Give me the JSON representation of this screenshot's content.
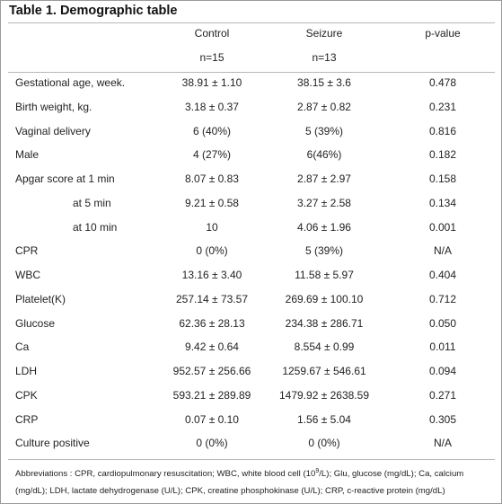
{
  "title": "Table 1. Demographic table",
  "header": {
    "control": "Control",
    "seizure": "Seizure",
    "pvalue": "p-value",
    "control_n": "n=15",
    "seizure_n": "n=13"
  },
  "rows": [
    {
      "label": "Gestational age, week.",
      "control": "38.91 ± 1.10",
      "seizure": "38.15 ± 3.6",
      "p": "0.478"
    },
    {
      "label": "Birth weight, kg.",
      "control": "3.18 ± 0.37",
      "seizure": "2.87 ± 0.82",
      "p": "0.231"
    },
    {
      "label": "Vaginal delivery",
      "control": "6 (40%)",
      "seizure": "5 (39%)",
      "p": "0.816"
    },
    {
      "label": "Male",
      "control": "4 (27%)",
      "seizure": "6(46%)",
      "p": "0.182"
    },
    {
      "label": "Apgar score at 1 min",
      "control": "8.07 ± 0.83",
      "seizure": "2.87 ± 2.97",
      "p": "0.158"
    },
    {
      "label": "at 5 min",
      "control": "9.21 ± 0.58",
      "seizure": "3.27 ± 2.58",
      "p": "0.134"
    },
    {
      "label": "at 10 min",
      "control": "10",
      "seizure": "4.06 ± 1.96",
      "p": "0.001"
    },
    {
      "label": "CPR",
      "control": "0 (0%)",
      "seizure": "5 (39%)",
      "p": "N/A"
    },
    {
      "label": "WBC",
      "control": "13.16 ± 3.40",
      "seizure": "11.58 ± 5.97",
      "p": "0.404"
    },
    {
      "label": "Platelet(K)",
      "control": "257.14 ± 73.57",
      "seizure": "269.69 ± 100.10",
      "p": "0.712"
    },
    {
      "label": "Glucose",
      "control": "62.36 ± 28.13",
      "seizure": "234.38 ± 286.71",
      "p": "0.050"
    },
    {
      "label": "Ca",
      "control": "9.42 ± 0.64",
      "seizure": "8.554 ± 0.99",
      "p": "0.011"
    },
    {
      "label": "LDH",
      "control": "952.57 ± 256.66",
      "seizure": "1259.67 ± 546.61",
      "p": "0.094"
    },
    {
      "label": "CPK",
      "control": "593.21 ± 289.89",
      "seizure": "1479.92 ± 2638.59",
      "p": "0.271"
    },
    {
      "label": "CRP",
      "control": "0.07 ± 0.10",
      "seizure": "1.56 ± 5.04",
      "p": "0.305"
    },
    {
      "label": "Culture positive",
      "control": "0 (0%)",
      "seizure": "0 (0%)",
      "p": "N/A"
    }
  ],
  "abbreviations": {
    "part1": "Abbreviations : CPR, cardiopulmonary resuscitation; WBC, white blood cell (10",
    "sup": "9",
    "part2": "/L); Glu, glucose (mg/dL); Ca, calcium (mg/dL); LDH, lactate dehydrogenase (U/L); CPK, creatine phosphokinase (U/L); CRP, c-reactive protein (mg/dL)"
  }
}
